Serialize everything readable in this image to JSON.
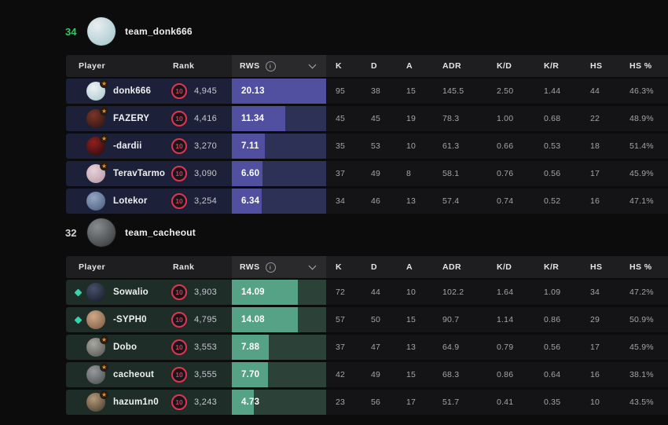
{
  "table": {
    "columns": {
      "player": "Player",
      "rank": "Rank",
      "rws": "RWS"
    },
    "stat_columns": [
      "K",
      "D",
      "A",
      "ADR",
      "K/D",
      "K/R",
      "HS",
      "HS %"
    ],
    "rws_max": 20.13
  },
  "icons": {
    "star": "★",
    "info": "i",
    "diamond_color": "#37d3ac",
    "faceit_red": "#e3344e",
    "star_orange": "#f08b1e"
  },
  "teams": [
    {
      "score": "34",
      "score_color": "#34c763",
      "name": "team_donk666",
      "avatar_colors": [
        "#e9eef0",
        "#9fc3ca"
      ],
      "colors": {
        "row_bg": "#1c2139",
        "rws_bg": "#2e3156",
        "bar": "#504fa0"
      },
      "players": [
        {
          "name": "donk666",
          "marker": "star",
          "avatar_colors": [
            "#eef2f3",
            "#a3c6cc"
          ],
          "rank_level": "10",
          "rank": "4,945",
          "rws": "20.13",
          "stats": [
            "95",
            "38",
            "15",
            "145.5",
            "2.50",
            "1.44",
            "44",
            "46.3%"
          ]
        },
        {
          "name": "FAZERY",
          "marker": "star",
          "avatar_colors": [
            "#7a352a",
            "#26120f"
          ],
          "rank_level": "10",
          "rank": "4,416",
          "rws": "11.34",
          "stats": [
            "45",
            "45",
            "19",
            "78.3",
            "1.00",
            "0.68",
            "22",
            "48.9%"
          ]
        },
        {
          "name": "-dardii",
          "marker": "star",
          "avatar_colors": [
            "#931f1f",
            "#1c0c0c"
          ],
          "rank_level": "10",
          "rank": "3,270",
          "rws": "7.11",
          "stats": [
            "35",
            "53",
            "10",
            "61.3",
            "0.66",
            "0.53",
            "18",
            "51.4%"
          ]
        },
        {
          "name": "TeravTarmo",
          "marker": "star",
          "avatar_colors": [
            "#e8d2d8",
            "#b295a2"
          ],
          "rank_level": "10",
          "rank": "3,090",
          "rws": "6.60",
          "stats": [
            "37",
            "49",
            "8",
            "58.1",
            "0.76",
            "0.56",
            "17",
            "45.9%"
          ]
        },
        {
          "name": "Lotekor",
          "marker": "none",
          "avatar_colors": [
            "#93a7c4",
            "#46597a"
          ],
          "rank_level": "10",
          "rank": "3,254",
          "rws": "6.34",
          "stats": [
            "34",
            "46",
            "13",
            "57.4",
            "0.74",
            "0.52",
            "16",
            "47.1%"
          ]
        }
      ]
    },
    {
      "score": "32",
      "score_color": "#d4d6d8",
      "name": "team_cacheout",
      "avatar_colors": [
        "#8a8d8f",
        "#2e3032"
      ],
      "colors": {
        "row_bg": "#1e2d28",
        "rws_bg": "#2c4138",
        "bar": "#55a287"
      },
      "players": [
        {
          "name": "Sowalio",
          "marker": "diamond",
          "avatar_colors": [
            "#47506b",
            "#141925"
          ],
          "rank_level": "10",
          "rank": "3,903",
          "rws": "14.09",
          "stats": [
            "72",
            "44",
            "10",
            "102.2",
            "1.64",
            "1.09",
            "34",
            "47.2%"
          ]
        },
        {
          "name": "-SYPH0",
          "marker": "diamond",
          "avatar_colors": [
            "#d2a988",
            "#74543d"
          ],
          "rank_level": "10",
          "rank": "4,795",
          "rws": "14.08",
          "stats": [
            "57",
            "50",
            "15",
            "90.7",
            "1.14",
            "0.86",
            "29",
            "50.9%"
          ]
        },
        {
          "name": "Dobo",
          "marker": "star",
          "avatar_colors": [
            "#a8a8a2",
            "#50504b"
          ],
          "rank_level": "10",
          "rank": "3,553",
          "rws": "7.88",
          "stats": [
            "37",
            "47",
            "13",
            "64.9",
            "0.79",
            "0.56",
            "17",
            "45.9%"
          ]
        },
        {
          "name": "cacheout",
          "marker": "star",
          "avatar_colors": [
            "#97999c",
            "#474a4e"
          ],
          "rank_level": "10",
          "rank": "3,555",
          "rws": "7.70",
          "stats": [
            "42",
            "49",
            "15",
            "68.3",
            "0.86",
            "0.64",
            "16",
            "38.1%"
          ]
        },
        {
          "name": "hazum1n0",
          "marker": "star",
          "avatar_colors": [
            "#b59a77",
            "#3e352a"
          ],
          "rank_level": "10",
          "rank": "3,243",
          "rws": "4.73",
          "stats": [
            "23",
            "56",
            "17",
            "51.7",
            "0.41",
            "0.35",
            "10",
            "43.5%"
          ]
        }
      ]
    }
  ]
}
